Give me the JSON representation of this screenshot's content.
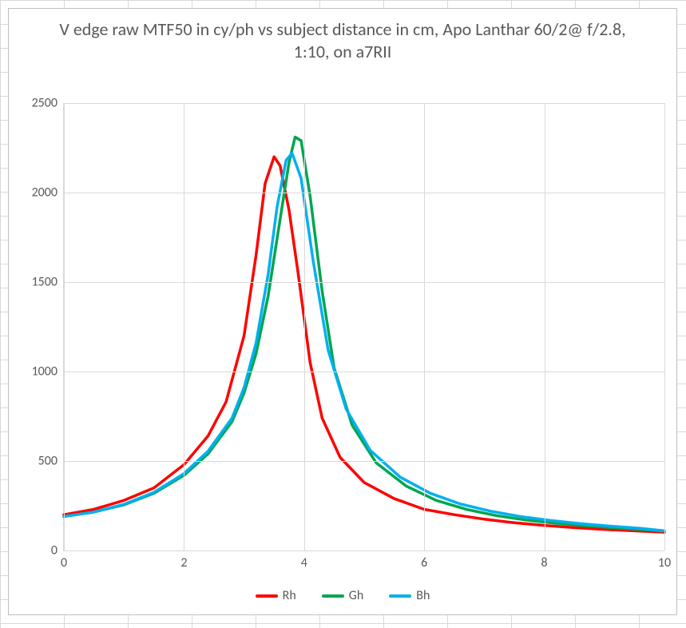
{
  "chart": {
    "type": "line",
    "title": "V edge raw MTF50 in cy/ph vs subject distance in cm, Apo Lanthar 60/2@ f/2.8, 1:10, on a7RII",
    "title_color": "#595959",
    "title_fontsize": 22,
    "background_color": "#ffffff",
    "border_color": "#bfbfbf",
    "grid_color": "#d9d9d9",
    "axis_label_color": "#595959",
    "axis_label_fontsize": 16,
    "xlim": [
      0,
      10
    ],
    "ylim": [
      0,
      2500
    ],
    "x_ticks": [
      0,
      2,
      4,
      6,
      8,
      10
    ],
    "y_ticks": [
      0,
      500,
      1000,
      1500,
      2000,
      2500
    ],
    "line_width": 3.5,
    "series": [
      {
        "name": "Rh",
        "color": "#ff0000",
        "x": [
          0,
          0.5,
          1.0,
          1.5,
          2.0,
          2.4,
          2.7,
          3.0,
          3.2,
          3.35,
          3.5,
          3.6,
          3.75,
          3.9,
          4.1,
          4.3,
          4.6,
          5.0,
          5.5,
          6.0,
          6.5,
          7.0,
          7.5,
          8.0,
          8.5,
          9.0,
          9.5,
          10.0
        ],
        "y": [
          200,
          230,
          280,
          350,
          480,
          640,
          830,
          1200,
          1650,
          2050,
          2200,
          2150,
          1900,
          1550,
          1050,
          740,
          520,
          380,
          290,
          230,
          200,
          175,
          155,
          140,
          128,
          118,
          110,
          102
        ]
      },
      {
        "name": "Gh",
        "color": "#00a650",
        "x": [
          0,
          0.5,
          1.0,
          1.5,
          2.0,
          2.4,
          2.8,
          3.0,
          3.2,
          3.4,
          3.6,
          3.75,
          3.85,
          3.95,
          4.1,
          4.3,
          4.5,
          4.8,
          5.2,
          5.7,
          6.2,
          6.7,
          7.2,
          7.7,
          8.2,
          8.7,
          9.2,
          10.0
        ],
        "y": [
          190,
          215,
          255,
          320,
          420,
          540,
          720,
          880,
          1100,
          1420,
          1850,
          2170,
          2310,
          2290,
          1980,
          1450,
          1020,
          700,
          490,
          360,
          280,
          230,
          195,
          170,
          152,
          138,
          126,
          108
        ]
      },
      {
        "name": "Bh",
        "color": "#00b0f0",
        "x": [
          0,
          0.5,
          1.0,
          1.5,
          2.0,
          2.4,
          2.8,
          3.0,
          3.2,
          3.4,
          3.55,
          3.7,
          3.8,
          3.95,
          4.15,
          4.4,
          4.7,
          5.1,
          5.6,
          6.1,
          6.6,
          7.1,
          7.6,
          8.1,
          8.6,
          9.1,
          9.6,
          10.0
        ],
        "y": [
          190,
          215,
          258,
          325,
          430,
          555,
          740,
          910,
          1160,
          1540,
          1920,
          2180,
          2220,
          2080,
          1620,
          1120,
          790,
          560,
          410,
          320,
          260,
          220,
          190,
          168,
          150,
          136,
          124,
          110
        ]
      }
    ],
    "legend": {
      "items": [
        {
          "label": "Rh",
          "color": "#ff0000"
        },
        {
          "label": "Gh",
          "color": "#00a650"
        },
        {
          "label": "Bh",
          "color": "#00b0f0"
        }
      ],
      "fontsize": 16,
      "text_color": "#595959"
    }
  }
}
